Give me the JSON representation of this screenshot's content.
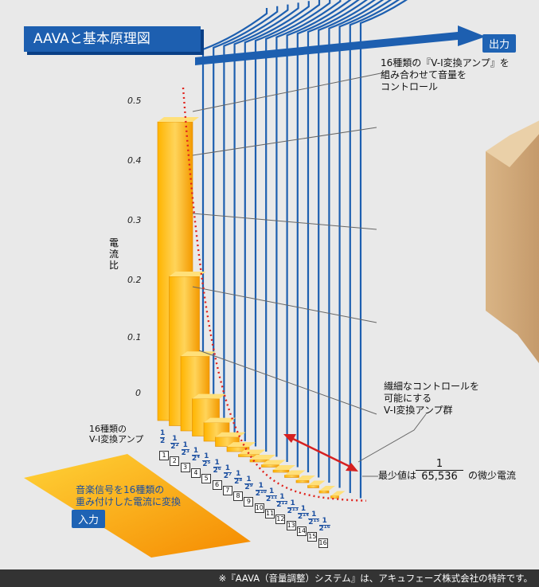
{
  "title": "AAVAと基本原理図",
  "output_label": "出力",
  "input_label": "入力",
  "top_note": [
    "16種類の『V-I変換アンプ』を",
    "組み合わせて音量を",
    "コントロール"
  ],
  "right_note": [
    "繊細なコントロールを",
    "可能にする",
    "V-I変換アンプ群"
  ],
  "left_note": [
    "16種類の",
    "V-I変換アンプ"
  ],
  "input_note": [
    "音楽信号を16種類の",
    "重み付けした電流に変換"
  ],
  "y_axis_label": "電流比",
  "y_ticks": [
    "0.5",
    "0.4",
    "0.3",
    "0.2",
    "0.1",
    "0"
  ],
  "min_value": {
    "prefix": "最少値は",
    "numerator": "1",
    "denominator": "65,536",
    "suffix": "の微少電流"
  },
  "amp_numbers": [
    "1",
    "2",
    "3",
    "4",
    "5",
    "6",
    "7",
    "8",
    "9",
    "10",
    "11",
    "12",
    "13",
    "14",
    "15",
    "16"
  ],
  "amp_fractions": [
    {
      "n": "1",
      "d": "2"
    },
    {
      "n": "1",
      "d": "2²"
    },
    {
      "n": "1",
      "d": "2³"
    },
    {
      "n": "1",
      "d": "2⁴"
    },
    {
      "n": "1",
      "d": "2⁵"
    },
    {
      "n": "1",
      "d": "2⁶"
    },
    {
      "n": "1",
      "d": "2⁷"
    },
    {
      "n": "1",
      "d": "2⁸"
    },
    {
      "n": "1",
      "d": "2⁹"
    },
    {
      "n": "1",
      "d": "2¹⁰"
    },
    {
      "n": "1",
      "d": "2¹¹"
    },
    {
      "n": "1",
      "d": "2¹²"
    },
    {
      "n": "1",
      "d": "2¹³"
    },
    {
      "n": "1",
      "d": "2¹⁴"
    },
    {
      "n": "1",
      "d": "2¹⁵"
    },
    {
      "n": "1",
      "d": "2¹⁶"
    }
  ],
  "current_ratios": [
    0.5,
    0.25,
    0.125,
    0.0625,
    0.03125,
    0.015625,
    0.0078125,
    0.00390625,
    0.001953125,
    0.0009765625,
    0.00048828125,
    0.000244140625,
    0.0001220703125,
    6.103515625e-05,
    3.0517578125e-05,
    1.52587890625e-05
  ],
  "footer": "※『AAVA（音量調整）システム』は、アキュフェーズ株式会社の特許です。",
  "colors": {
    "blue": "#1d5fb0",
    "orange": "#f7a400",
    "red_dots": "#e0221c",
    "arrow_red": "#d62020"
  }
}
